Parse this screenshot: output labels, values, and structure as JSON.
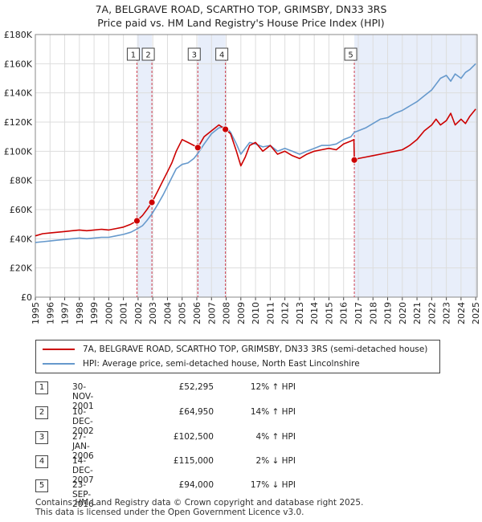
{
  "header": {
    "title_line1": "7A, BELGRAVE ROAD, SCARTHO TOP, GRIMSBY, DN33 3RS",
    "title_line2": "Price paid vs. HM Land Registry's House Price Index (HPI)"
  },
  "colors": {
    "property": "#cc0000",
    "hpi": "#6699cc",
    "shade": "#e8eefa",
    "vline": "#d04050"
  },
  "chart_data": {
    "type": "line",
    "xlim": [
      1995,
      2025.1
    ],
    "ylim": [
      0,
      180000
    ],
    "yticks": [
      0,
      20000,
      40000,
      60000,
      80000,
      100000,
      120000,
      140000,
      160000,
      180000
    ],
    "ytick_labels": [
      "£0",
      "£20K",
      "£40K",
      "£60K",
      "£80K",
      "£100K",
      "£120K",
      "£140K",
      "£160K",
      "£180K"
    ],
    "xticks": [
      "1995",
      "1996",
      "1997",
      "1998",
      "1999",
      "2000",
      "2001",
      "2002",
      "2003",
      "2004",
      "2005",
      "2006",
      "2007",
      "2008",
      "2009",
      "2010",
      "2011",
      "2012",
      "2013",
      "2014",
      "2015",
      "2016",
      "2017",
      "2018",
      "2019",
      "2020",
      "2021",
      "2022",
      "2023",
      "2024",
      "2025"
    ],
    "grid": true,
    "shaded_periods": [
      [
        2001.92,
        2002.94
      ],
      [
        2006.07,
        2007.95
      ],
      [
        2016.73,
        2025.1
      ]
    ],
    "series": [
      {
        "name": "7A, BELGRAVE ROAD, SCARTHO TOP, GRIMSBY, DN33 3RS (semi-detached house)",
        "x": [
          1995,
          1995.5,
          1996,
          1996.5,
          1997,
          1997.5,
          1998,
          1998.5,
          1999,
          1999.5,
          2000,
          2000.5,
          2001,
          2001.5,
          2001.92,
          2002.3,
          2002.6,
          2002.94,
          2003.3,
          2003.7,
          2004,
          2004.3,
          2004.6,
          2005,
          2005.4,
          2005.8,
          2006.07,
          2006.5,
          2007,
          2007.5,
          2007.95,
          2008.3,
          2008.7,
          2009,
          2009.3,
          2009.6,
          2010,
          2010.5,
          2011,
          2011.5,
          2012,
          2012.5,
          2013,
          2013.5,
          2014,
          2014.5,
          2015,
          2015.5,
          2016,
          2016.5,
          2016.7,
          2016.73,
          2017,
          2017.5,
          2018,
          2018.5,
          2019,
          2019.5,
          2020,
          2020.5,
          2021,
          2021.5,
          2022,
          2022.3,
          2022.6,
          2023,
          2023.3,
          2023.6,
          2024,
          2024.3,
          2024.6,
          2025
        ],
        "values": [
          42000,
          43500,
          44000,
          44500,
          45000,
          45500,
          46000,
          45500,
          46000,
          46500,
          46000,
          47000,
          48000,
          50000,
          52295,
          56000,
          60000,
          64950,
          72000,
          80000,
          86000,
          92000,
          100000,
          108000,
          106000,
          104000,
          102500,
          110000,
          114000,
          118000,
          115000,
          112000,
          100000,
          90000,
          96000,
          104000,
          106000,
          100000,
          104000,
          98000,
          100000,
          97000,
          95000,
          98000,
          100000,
          101000,
          102000,
          101000,
          105000,
          107000,
          108000,
          94000,
          95000,
          96000,
          97000,
          98000,
          99000,
          100000,
          101000,
          104000,
          108000,
          114000,
          118000,
          122000,
          118000,
          121000,
          126000,
          118000,
          122000,
          119000,
          124000,
          129000
        ]
      },
      {
        "name": "HPI: Average price, semi-detached house, North East Lincolnshire",
        "x": [
          1995,
          1995.5,
          1996,
          1996.5,
          1997,
          1997.5,
          1998,
          1998.5,
          1999,
          1999.5,
          2000,
          2000.5,
          2001,
          2001.5,
          2001.92,
          2002.3,
          2002.6,
          2002.94,
          2003.3,
          2003.7,
          2004,
          2004.3,
          2004.6,
          2005,
          2005.4,
          2005.8,
          2006.07,
          2006.5,
          2007,
          2007.5,
          2007.95,
          2008.3,
          2008.7,
          2009,
          2009.3,
          2009.6,
          2010,
          2010.5,
          2011,
          2011.5,
          2012,
          2012.5,
          2013,
          2013.5,
          2014,
          2014.5,
          2015,
          2015.5,
          2016,
          2016.5,
          2016.73,
          2017,
          2017.5,
          2018,
          2018.5,
          2019,
          2019.5,
          2020,
          2020.5,
          2021,
          2021.5,
          2022,
          2022.3,
          2022.6,
          2023,
          2023.3,
          2023.6,
          2024,
          2024.3,
          2024.6,
          2025
        ],
        "values": [
          37500,
          38000,
          38500,
          39000,
          39500,
          40000,
          40500,
          40000,
          40500,
          41000,
          41000,
          42000,
          43000,
          44500,
          46700,
          49000,
          52500,
          57000,
          63000,
          70000,
          76000,
          82000,
          88000,
          91000,
          92000,
          95000,
          98500,
          105000,
          112000,
          116000,
          117000,
          113000,
          105000,
          98000,
          102000,
          106000,
          105000,
          103000,
          104000,
          100000,
          102000,
          100000,
          98000,
          100000,
          102000,
          104000,
          104000,
          105000,
          108000,
          110000,
          113000,
          114000,
          116000,
          119000,
          122000,
          123000,
          126000,
          128000,
          131000,
          134000,
          138000,
          142000,
          146000,
          150000,
          152000,
          148000,
          153000,
          150000,
          154000,
          156000,
          160000
        ]
      }
    ],
    "sales": [
      {
        "id": "1",
        "x": 2001.92,
        "y": 52295
      },
      {
        "id": "2",
        "x": 2002.94,
        "y": 64950
      },
      {
        "id": "3",
        "x": 2006.07,
        "y": 102500
      },
      {
        "id": "4",
        "x": 2007.95,
        "y": 115000
      },
      {
        "id": "5",
        "x": 2016.73,
        "y": 94000
      }
    ]
  },
  "legend": {
    "property_label": "7A, BELGRAVE ROAD, SCARTHO TOP, GRIMSBY, DN33 3RS (semi-detached house)",
    "hpi_label": "HPI: Average price, semi-detached house, North East Lincolnshire"
  },
  "transactions": [
    {
      "num": "1",
      "date": "30-NOV-2001",
      "price": "£52,295",
      "hpi": "12% ↑ HPI"
    },
    {
      "num": "2",
      "date": "10-DEC-2002",
      "price": "£64,950",
      "hpi": "14% ↑ HPI"
    },
    {
      "num": "3",
      "date": "27-JAN-2006",
      "price": "£102,500",
      "hpi": "4% ↑ HPI"
    },
    {
      "num": "4",
      "date": "14-DEC-2007",
      "price": "£115,000",
      "hpi": "2% ↓ HPI"
    },
    {
      "num": "5",
      "date": "23-SEP-2016",
      "price": "£94,000",
      "hpi": "17% ↓ HPI"
    }
  ],
  "footer": {
    "line1": "Contains HM Land Registry data © Crown copyright and database right 2025.",
    "line2": "This data is licensed under the Open Government Licence v3.0."
  }
}
